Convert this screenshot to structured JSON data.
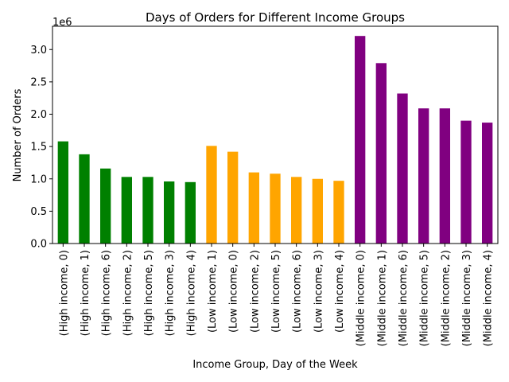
{
  "chart_data": {
    "type": "bar",
    "title": "Days of Orders for Different Income Groups",
    "xlabel": "Income Group, Day of the Week",
    "ylabel": "Number of Orders",
    "y_offset_text": "1e6",
    "ylim": [
      0,
      3.36
    ],
    "yticks": [
      0.0,
      0.5,
      1.0,
      1.5,
      2.0,
      2.5,
      3.0
    ],
    "ytick_labels": [
      "0.0",
      "0.5",
      "1.0",
      "1.5",
      "2.0",
      "2.5",
      "3.0"
    ],
    "categories": [
      "(High income, 0)",
      "(High income, 1)",
      "(High income, 6)",
      "(High income, 2)",
      "(High income, 5)",
      "(High income, 3)",
      "(High income, 4)",
      "(Low income, 1)",
      "(Low income, 0)",
      "(Low income, 2)",
      "(Low income, 5)",
      "(Low income, 6)",
      "(Low income, 3)",
      "(Low income, 4)",
      "(Middle income, 0)",
      "(Middle income, 1)",
      "(Middle income, 6)",
      "(Middle income, 5)",
      "(Middle income, 2)",
      "(Middle income, 3)",
      "(Middle income, 4)"
    ],
    "values": [
      1.58,
      1.38,
      1.16,
      1.03,
      1.03,
      0.96,
      0.95,
      1.51,
      1.42,
      1.1,
      1.08,
      1.03,
      1.0,
      0.97,
      3.21,
      2.79,
      2.32,
      2.09,
      2.09,
      1.9,
      1.87
    ],
    "bar_colors": [
      "#008000",
      "#008000",
      "#008000",
      "#008000",
      "#008000",
      "#008000",
      "#008000",
      "#ffa500",
      "#ffa500",
      "#ffa500",
      "#ffa500",
      "#ffa500",
      "#ffa500",
      "#ffa500",
      "#800080",
      "#800080",
      "#800080",
      "#800080",
      "#800080",
      "#800080",
      "#800080"
    ],
    "grid": false,
    "legend": "none"
  }
}
